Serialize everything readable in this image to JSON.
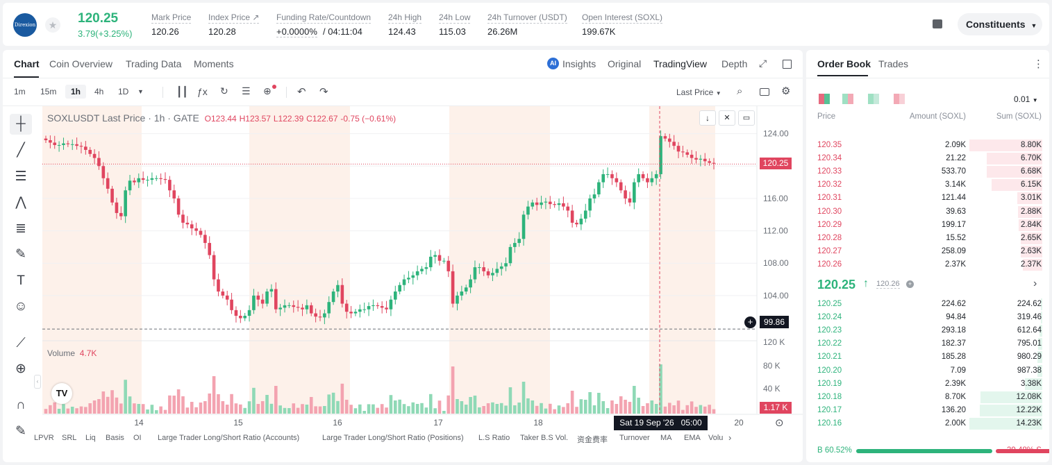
{
  "header": {
    "logo_text": "Direxion",
    "price": "120.25",
    "change": "3.79(+3.25%)",
    "stats": [
      {
        "label": "Mark Price",
        "value": "120.26"
      },
      {
        "label": "Index Price ↗",
        "value": "120.28"
      },
      {
        "label": "Funding Rate/Countdown",
        "value_a": "+0.0000%",
        "value_b": "/ 04:11:04"
      },
      {
        "label": "24h High",
        "value": "124.43"
      },
      {
        "label": "24h Low",
        "value": "115.03"
      },
      {
        "label": "24h Turnover (USDT)",
        "value": "26.26M"
      },
      {
        "label": "Open Interest (SOXL)",
        "value": "199.67K"
      }
    ],
    "constituents": "Constituents"
  },
  "chart_panel": {
    "tabs": [
      "Chart",
      "Coin Overview",
      "Trading Data",
      "Moments"
    ],
    "views": [
      "Insights",
      "Original",
      "TradingView",
      "Depth"
    ],
    "intervals": [
      "1m",
      "15m",
      "1h",
      "4h",
      "1D"
    ],
    "price_type": "Last Price",
    "legend": {
      "symbol": "SOXLUSDT Last Price · 1h · GATE",
      "o": "O123.44",
      "h": "H123.57",
      "l": "L122.39",
      "c": "C122.67",
      "chg": "-0.75 (−0.61%)"
    },
    "volume_label": "Volume",
    "volume_value": "4.7K",
    "crosshair_price": "99.86",
    "crosshair_time": "Sat 19 Sep '26   05:00",
    "last_price_tag": "120.25",
    "last_volume_tag": "1.17 K",
    "indicators": [
      "LPVR",
      "SRL",
      "Liq",
      "Basis",
      "OI",
      "Large Trader Long/Short Ratio (Accounts)",
      "Large Trader Long/Short Ratio (Positions)",
      "L.S Ratio",
      "Taker B.S Vol.",
      "资金费率",
      "Turnover",
      "MA",
      "EMA",
      "Volu"
    ]
  },
  "chart_data": {
    "type": "candlestick",
    "x_ticks": [
      "14",
      "15",
      "16",
      "17",
      "18",
      "20"
    ],
    "y_ticks": [
      "124.00",
      "120.00",
      "116.00",
      "112.00",
      "108.00",
      "104.00"
    ],
    "volume_ticks": [
      "120 K",
      "80 K",
      "40 K"
    ],
    "ylim": [
      98.5,
      127.4
    ],
    "close_series": [
      123.2,
      122.9,
      122.6,
      122.6,
      122.8,
      122.7,
      122.7,
      122.5,
      122.4,
      122.0,
      121.5,
      121.0,
      120.0,
      118.5,
      117.2,
      115.5,
      114.2,
      113.8,
      117.0,
      118.2,
      118.0,
      118.5,
      118.3,
      118.3,
      118.5,
      118.5,
      118.4,
      118.3,
      117.0,
      116.0,
      114.0,
      113.0,
      112.8,
      112.3,
      112.0,
      111.5,
      110.5,
      109.0,
      106.0,
      104.5,
      104.0,
      103.5,
      102.2,
      101.5,
      101.2,
      101.5,
      102.2,
      104.0,
      103.5,
      103.0,
      104.5,
      104.8,
      102.3,
      102.5,
      102.8,
      102.8,
      102.6,
      102.5,
      102.3,
      102.8,
      101.8,
      101.4,
      101.3,
      101.8,
      103.2,
      104.5,
      105.3,
      103.0,
      102.0,
      101.8,
      102.0,
      102.3,
      102.3,
      102.7,
      102.8,
      102.7,
      102.5,
      102.3,
      103.5,
      104.5,
      105.3,
      106.0,
      106.2,
      106.5,
      107.0,
      107.3,
      107.5,
      108.8,
      109.0,
      108.3,
      108.3,
      107.0,
      103.0,
      104.0,
      104.5,
      105.0,
      106.0,
      107.5,
      107.5,
      107.0,
      106.5,
      106.8,
      107.3,
      107.6,
      108.0,
      110.0,
      110.5,
      111.0,
      114.0,
      115.0,
      115.5,
      115.2,
      115.5,
      115.6,
      115.3,
      115.2,
      115.4,
      115.0,
      114.5,
      113.0,
      112.8,
      113.5,
      114.5,
      116.0,
      116.5,
      118.0,
      119.0,
      119.0,
      118.5,
      118.0,
      117.0,
      116.0,
      115.5,
      118.0,
      119.0,
      118.5,
      118.0,
      118.5,
      119.0,
      123.7,
      123.4,
      123.0,
      122.5,
      121.8,
      121.7,
      121.4,
      121.0,
      120.8,
      120.9,
      120.6,
      120.4,
      120.3
    ]
  },
  "order_book": {
    "tabs": [
      "Order Book",
      "Trades"
    ],
    "precision": "0.01",
    "columns": [
      "Price",
      "Amount (SOXL)",
      "Sum (SOXL)"
    ],
    "asks": [
      [
        "120.35",
        "2.09K",
        "8.80K",
        1.0
      ],
      [
        "120.34",
        "21.22",
        "6.70K",
        0.76
      ],
      [
        "120.33",
        "533.70",
        "6.68K",
        0.76
      ],
      [
        "120.32",
        "3.14K",
        "6.15K",
        0.7
      ],
      [
        "120.31",
        "121.44",
        "3.01K",
        0.34
      ],
      [
        "120.30",
        "39.63",
        "2.88K",
        0.33
      ],
      [
        "120.29",
        "199.17",
        "2.84K",
        0.32
      ],
      [
        "120.28",
        "15.52",
        "2.65K",
        0.3
      ],
      [
        "120.27",
        "258.09",
        "2.63K",
        0.3
      ],
      [
        "120.26",
        "2.37K",
        "2.37K",
        0.27
      ]
    ],
    "mid_price": "120.25",
    "mid_mark": "120.26",
    "bids": [
      [
        "120.25",
        "224.62",
        "224.62",
        0.016
      ],
      [
        "120.24",
        "94.84",
        "319.46",
        0.022
      ],
      [
        "120.23",
        "293.18",
        "612.64",
        0.043
      ],
      [
        "120.22",
        "182.37",
        "795.01",
        0.056
      ],
      [
        "120.21",
        "185.28",
        "980.29",
        0.069
      ],
      [
        "120.20",
        "7.09",
        "987.38",
        0.069
      ],
      [
        "120.19",
        "2.39K",
        "3.38K",
        0.24
      ],
      [
        "120.18",
        "8.70K",
        "12.08K",
        0.85
      ],
      [
        "120.17",
        "136.20",
        "12.22K",
        0.86
      ],
      [
        "120.16",
        "2.00K",
        "14.23K",
        1.0
      ]
    ],
    "buy_label": "B",
    "buy_pct": "60.52%",
    "sell_pct": "39.48%",
    "sell_label": "S"
  }
}
